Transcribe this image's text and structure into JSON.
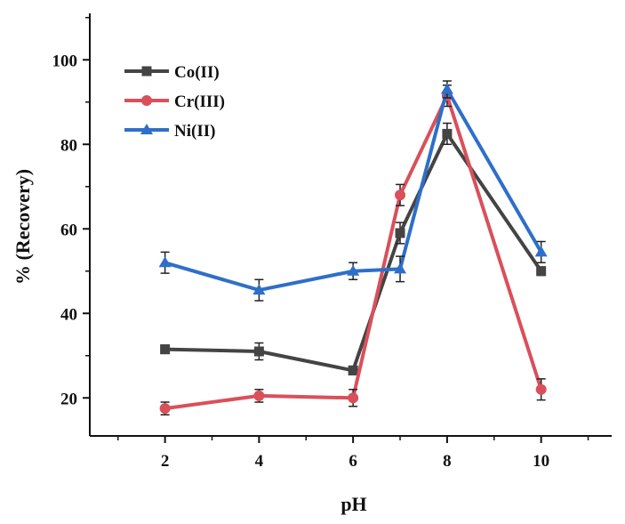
{
  "chart_data": {
    "type": "line",
    "title": "",
    "xlabel": "pH",
    "ylabel": "% (Recovery)",
    "x": [
      2,
      4,
      6,
      7,
      8,
      10
    ],
    "xticks": [
      "2",
      "4",
      "6",
      "8",
      "10"
    ],
    "xtick_values": [
      2,
      4,
      6,
      8,
      10
    ],
    "yticks": [
      "20",
      "40",
      "60",
      "80",
      "100"
    ],
    "ytick_values": [
      20,
      40,
      60,
      80,
      100
    ],
    "xlim": [
      0.4,
      11.5
    ],
    "ylim": [
      11,
      111
    ],
    "legend_position": "top-left",
    "series": [
      {
        "name": "Co(II)",
        "color": "#444444",
        "marker": "square",
        "values": [
          31.5,
          31,
          26.5,
          59,
          82.5,
          50
        ],
        "errors": [
          1,
          2,
          1,
          2.5,
          2.5,
          1
        ]
      },
      {
        "name": "Cr(III)",
        "color": "#d9505a",
        "marker": "circle",
        "values": [
          17.5,
          20.5,
          20,
          68,
          91.5,
          22
        ],
        "errors": [
          1.5,
          1.5,
          2,
          2.5,
          2.5,
          2.5
        ]
      },
      {
        "name": "Ni(II)",
        "color": "#2e6fc9",
        "marker": "triangle",
        "values": [
          52,
          45.5,
          50,
          50.5,
          93,
          54.5
        ],
        "errors": [
          2.5,
          2.5,
          2,
          3,
          2,
          2.5
        ]
      }
    ]
  }
}
